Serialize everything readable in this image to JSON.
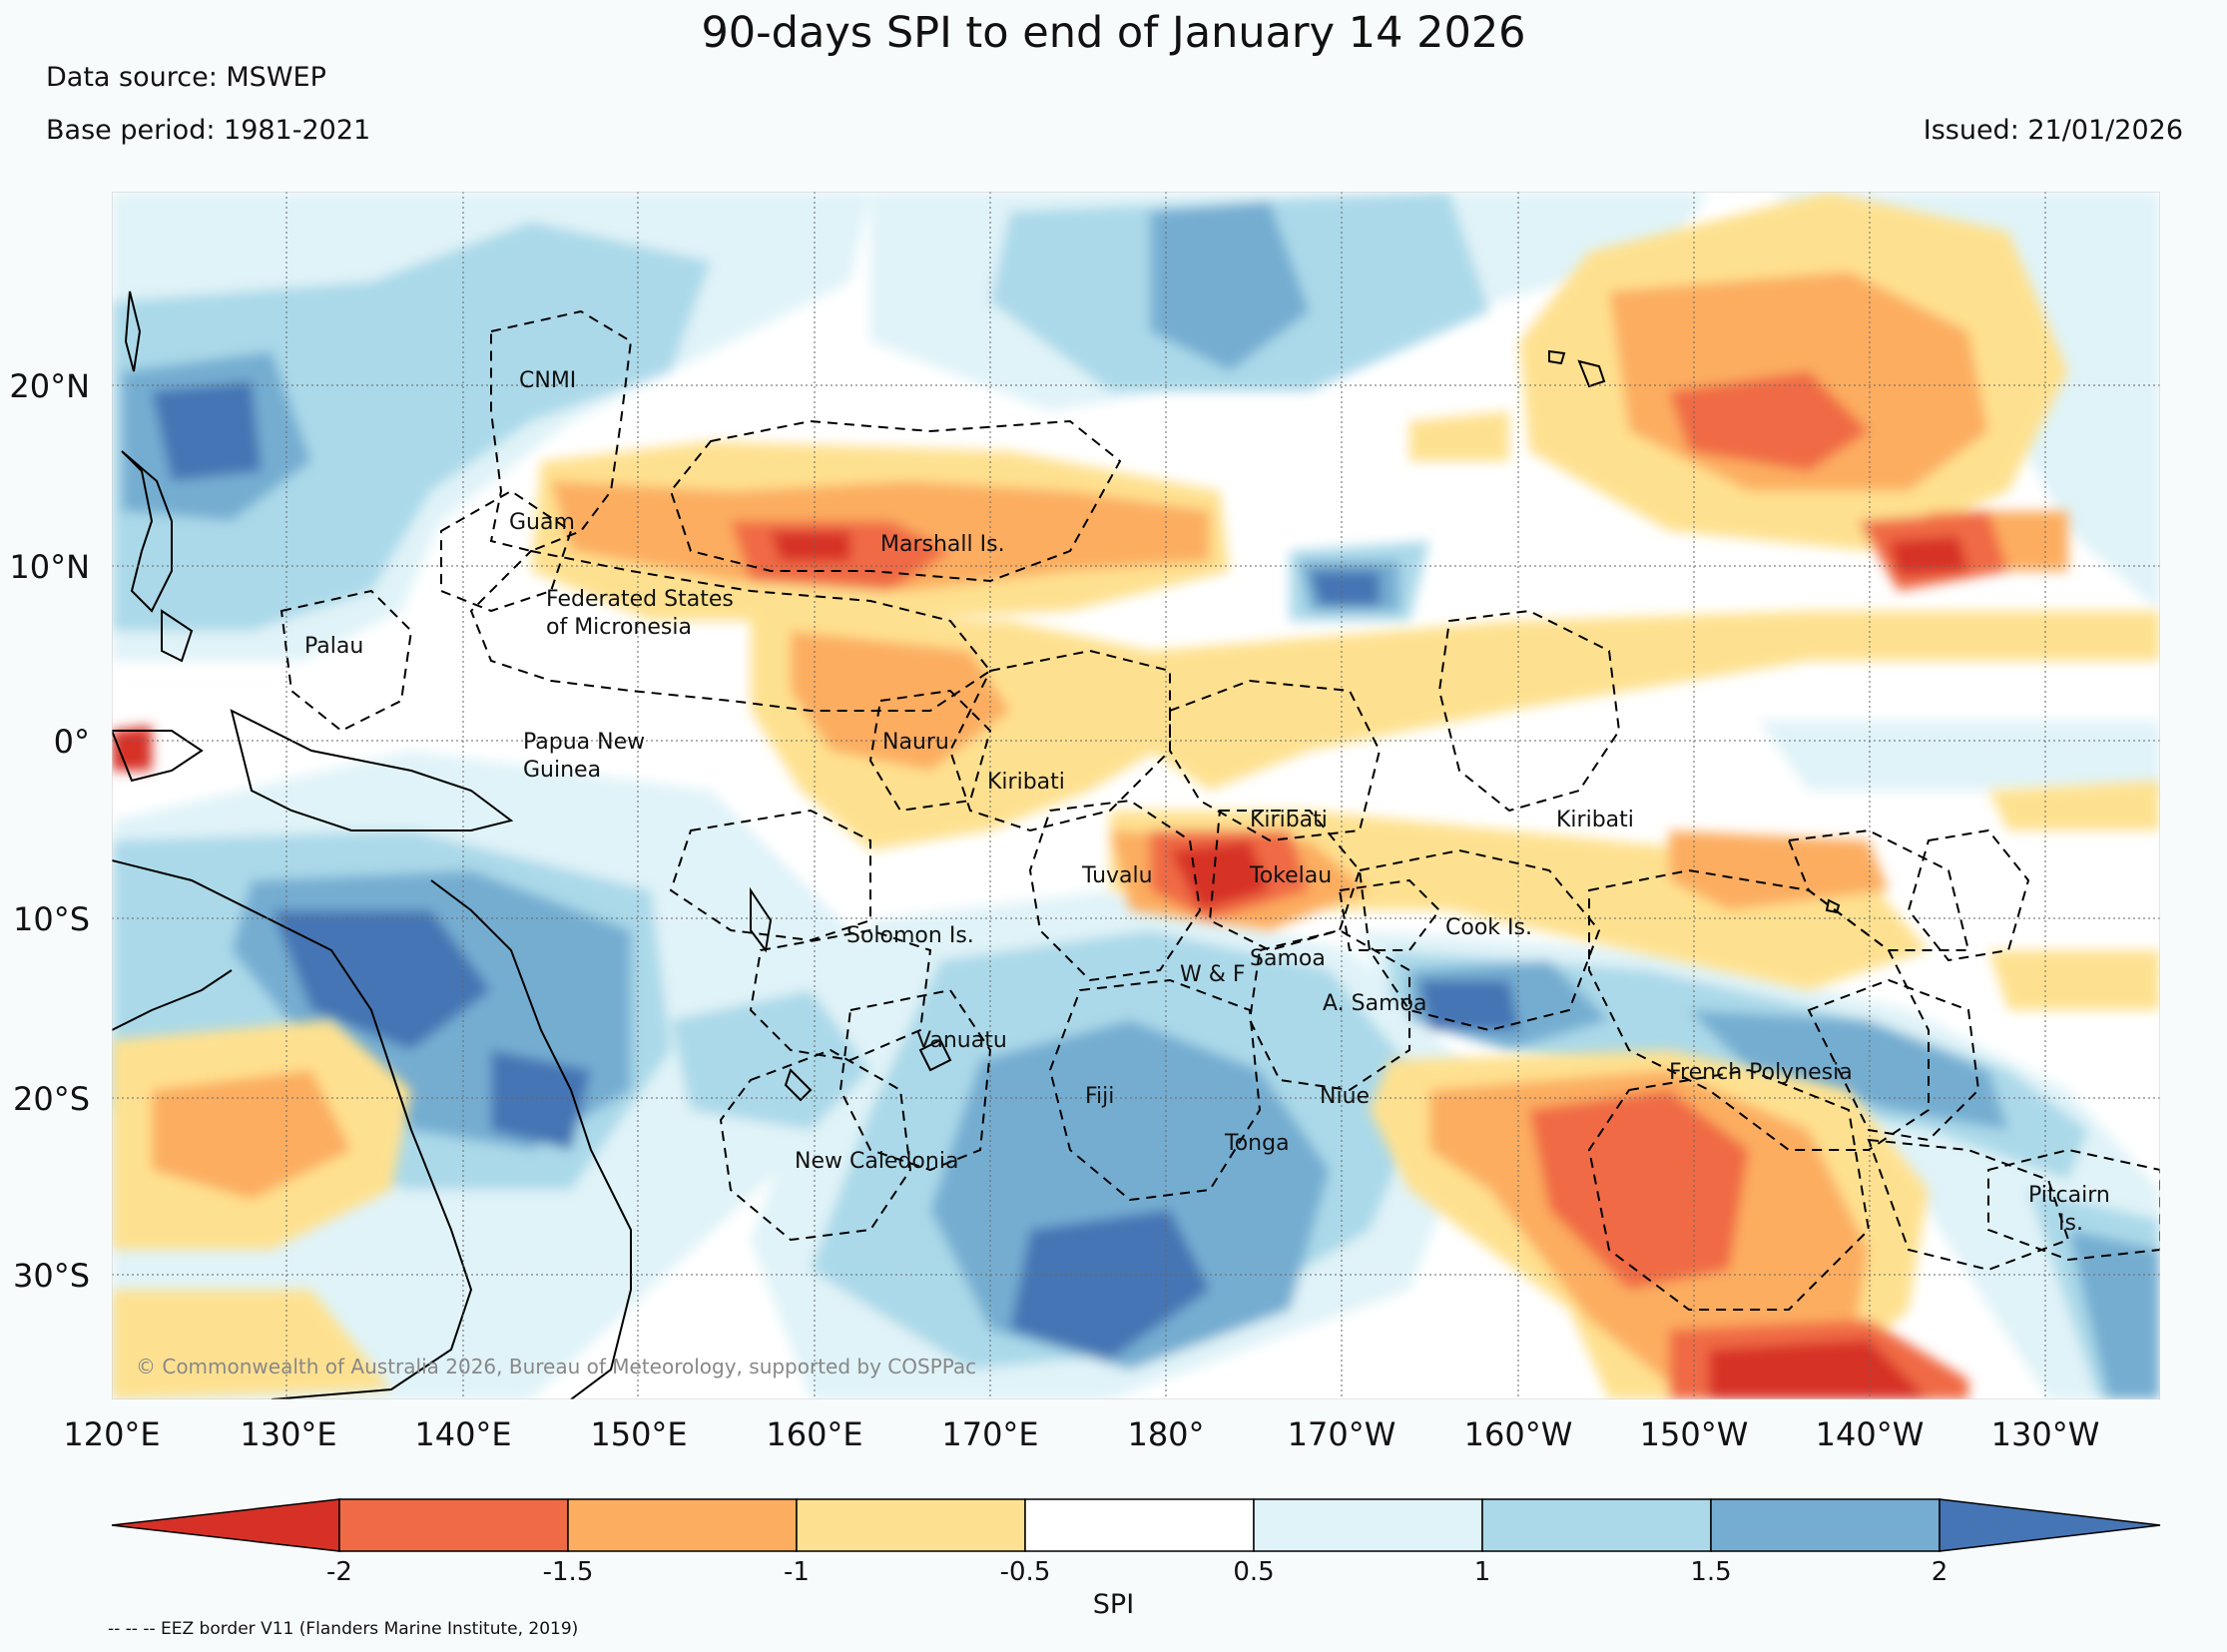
{
  "title": "90-days SPI to end of January 14 2026",
  "data_source": "Data source: MSWEP",
  "base_period": "Base period: 1981-2021",
  "issued": "Issued: 21/01/2026",
  "copyright": "© Commonwealth of Australia 2026, Bureau of Meteorology, supported by COSPPac",
  "colors": {
    "very_dry": "#d73027",
    "dry2": "#f06b45",
    "dry1": "#fcad60",
    "dry0": "#fee190",
    "neutral": "#ffffff",
    "wet0": "#e0f3f8",
    "wet1": "#abd9e9",
    "wet2": "#74add1",
    "very_wet": "#4575b4"
  },
  "lat_labels": [
    "20°N",
    "10°N",
    "0°",
    "10°S",
    "20°S",
    "30°S"
  ],
  "lon_labels": [
    "120°E",
    "130°E",
    "140°E",
    "150°E",
    "160°E",
    "170°E",
    "180°",
    "170°W",
    "160°W",
    "150°W",
    "140°W",
    "130°W"
  ],
  "regions": [
    "CNMI",
    "Guam",
    "Marshall Is.",
    "Federated States",
    "of Micronesia",
    "Palau",
    "Papua New",
    "Guinea",
    "Nauru",
    "Kiribati",
    "Kiribati",
    "Kiribati",
    "Tuvalu",
    "Tokelau",
    "Cook Is.",
    "Solomon Is.",
    "W & F",
    "Samoa",
    "A. Samoa",
    "Vanuatu",
    "Fiji",
    "Niue",
    "French Polynesia",
    "Tonga",
    "New Caledonia",
    "Pitcairn",
    "Is."
  ],
  "colorbar": {
    "label": "SPI",
    "ticks": [
      "-2",
      "-1.5",
      "-1",
      "-0.5",
      "0.5",
      "1",
      "1.5",
      "2"
    ]
  },
  "footnote": "-- -- -- EEZ border V11 (Flanders Marine Institute, 2019)"
}
